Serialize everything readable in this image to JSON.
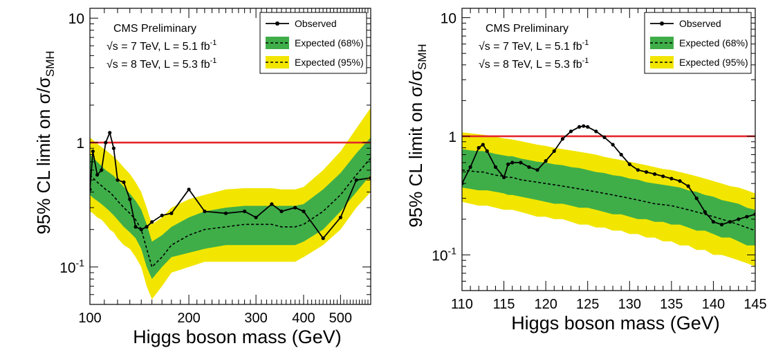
{
  "colors": {
    "band95": "#f2e600",
    "band68": "#3fae49",
    "observed": "#000000",
    "expected_line": "#000000",
    "sm_line": "#e4262a"
  },
  "chart_data": [
    {
      "type": "line",
      "xscale": "log",
      "yscale": "log",
      "xlim": [
        110,
        600
      ],
      "ylim": [
        0.05,
        12
      ],
      "xticks": [
        100,
        200,
        300,
        400,
        500
      ],
      "xtick_labels": [
        "100",
        "200",
        "300",
        "400",
        "500"
      ],
      "yticks": [
        0.1,
        1,
        10
      ],
      "ytick_labels": [
        "10-1",
        "1",
        "10"
      ],
      "xlabel": "Higgs boson mass (GeV)",
      "ylabel": "95% CL limit on σ/σSMH",
      "texts": [
        "CMS Preliminary",
        "√s = 7 TeV, L = 5.1 fb-1",
        "√s = 8 TeV, L = 5.3 fb-1"
      ],
      "legend": [
        "Observed",
        "Expected (68%)",
        "Expected (95%)"
      ],
      "sm_reference": 1,
      "x": [
        110,
        112,
        115,
        118,
        121,
        124,
        127,
        130,
        135,
        140,
        145,
        150,
        155,
        160,
        170,
        180,
        200,
        220,
        250,
        280,
        300,
        330,
        350,
        380,
        400,
        450,
        500,
        550,
        600
      ],
      "observed": [
        0.42,
        0.85,
        0.55,
        0.6,
        1.0,
        1.2,
        0.9,
        0.5,
        0.48,
        0.35,
        0.21,
        0.2,
        0.21,
        0.23,
        0.26,
        0.27,
        0.42,
        0.28,
        0.27,
        0.28,
        0.25,
        0.32,
        0.28,
        0.3,
        0.28,
        0.17,
        0.25,
        0.5,
        0.52
      ],
      "expected": [
        0.55,
        0.52,
        0.48,
        0.45,
        0.42,
        0.4,
        0.37,
        0.34,
        0.3,
        0.27,
        0.24,
        0.2,
        0.14,
        0.1,
        0.12,
        0.15,
        0.18,
        0.2,
        0.21,
        0.22,
        0.22,
        0.22,
        0.21,
        0.21,
        0.22,
        0.28,
        0.38,
        0.55,
        0.75
      ],
      "band68": {
        "low": [
          0.38,
          0.36,
          0.34,
          0.32,
          0.3,
          0.28,
          0.26,
          0.24,
          0.21,
          0.19,
          0.17,
          0.14,
          0.1,
          0.08,
          0.1,
          0.12,
          0.13,
          0.14,
          0.15,
          0.15,
          0.15,
          0.15,
          0.15,
          0.15,
          0.16,
          0.2,
          0.28,
          0.4,
          0.55
        ],
        "high": [
          0.8,
          0.76,
          0.7,
          0.65,
          0.6,
          0.57,
          0.54,
          0.5,
          0.44,
          0.39,
          0.34,
          0.29,
          0.22,
          0.16,
          0.18,
          0.21,
          0.25,
          0.28,
          0.3,
          0.31,
          0.31,
          0.31,
          0.31,
          0.31,
          0.32,
          0.42,
          0.57,
          0.82,
          1.1
        ]
      },
      "band95": {
        "low": [
          0.28,
          0.27,
          0.25,
          0.24,
          0.22,
          0.2,
          0.19,
          0.17,
          0.15,
          0.14,
          0.12,
          0.1,
          0.07,
          0.055,
          0.07,
          0.09,
          0.1,
          0.11,
          0.11,
          0.11,
          0.11,
          0.11,
          0.11,
          0.11,
          0.12,
          0.15,
          0.2,
          0.3,
          0.4
        ],
        "high": [
          1.1,
          1.05,
          0.98,
          0.92,
          0.87,
          0.82,
          0.77,
          0.72,
          0.63,
          0.56,
          0.48,
          0.4,
          0.3,
          0.22,
          0.25,
          0.3,
          0.35,
          0.38,
          0.42,
          0.43,
          0.43,
          0.43,
          0.42,
          0.42,
          0.44,
          0.6,
          0.85,
          1.3,
          1.9
        ]
      }
    },
    {
      "type": "line",
      "xscale": "linear",
      "yscale": "log",
      "xlim": [
        110,
        145
      ],
      "ylim": [
        0.05,
        12
      ],
      "xticks": [
        110,
        115,
        120,
        125,
        130,
        135,
        140,
        145
      ],
      "xtick_labels": [
        "110",
        "115",
        "120",
        "125",
        "130",
        "135",
        "140",
        "145"
      ],
      "yticks": [
        0.1,
        1,
        10
      ],
      "ytick_labels": [
        "10-1",
        "1",
        "10"
      ],
      "xlabel": "Higgs boson mass (GeV)",
      "ylabel": "95% CL limit on σ/σSMH",
      "texts": [
        "CMS Preliminary",
        "√s = 7 TeV, L = 5.1 fb-1",
        "√s = 8 TeV, L = 5.3 fb-1"
      ],
      "legend": [
        "Observed",
        "Expected (68%)",
        "Expected (95%)"
      ],
      "sm_reference": 1,
      "x": [
        110,
        111,
        112,
        112.5,
        113,
        114,
        115,
        115.5,
        116,
        117,
        118,
        119,
        120,
        121,
        122,
        123,
        124,
        124.5,
        125,
        126,
        127,
        128,
        129,
        130,
        131,
        132,
        133,
        134,
        135,
        136,
        137,
        138,
        139,
        140,
        141,
        142,
        143,
        144,
        145
      ],
      "observed": [
        0.4,
        0.55,
        0.8,
        0.85,
        0.75,
        0.55,
        0.45,
        0.58,
        0.6,
        0.6,
        0.55,
        0.52,
        0.62,
        0.75,
        0.95,
        1.1,
        1.2,
        1.22,
        1.2,
        1.1,
        0.98,
        0.85,
        0.7,
        0.58,
        0.52,
        0.5,
        0.48,
        0.46,
        0.44,
        0.42,
        0.38,
        0.3,
        0.23,
        0.19,
        0.18,
        0.19,
        0.2,
        0.21,
        0.22
      ],
      "expected": [
        0.52,
        0.51,
        0.5,
        0.5,
        0.49,
        0.47,
        0.46,
        0.45,
        0.45,
        0.43,
        0.42,
        0.41,
        0.4,
        0.39,
        0.38,
        0.37,
        0.36,
        0.355,
        0.35,
        0.34,
        0.33,
        0.32,
        0.31,
        0.3,
        0.29,
        0.28,
        0.27,
        0.265,
        0.26,
        0.25,
        0.24,
        0.23,
        0.22,
        0.21,
        0.2,
        0.19,
        0.18,
        0.17,
        0.16
      ],
      "band68": {
        "low": [
          0.37,
          0.36,
          0.35,
          0.35,
          0.35,
          0.34,
          0.33,
          0.32,
          0.32,
          0.31,
          0.3,
          0.29,
          0.28,
          0.27,
          0.27,
          0.26,
          0.25,
          0.25,
          0.25,
          0.24,
          0.23,
          0.22,
          0.22,
          0.21,
          0.2,
          0.2,
          0.19,
          0.19,
          0.18,
          0.18,
          0.17,
          0.16,
          0.16,
          0.15,
          0.14,
          0.14,
          0.13,
          0.12,
          0.12
        ],
        "high": [
          0.78,
          0.76,
          0.75,
          0.75,
          0.74,
          0.71,
          0.69,
          0.68,
          0.68,
          0.65,
          0.63,
          0.61,
          0.6,
          0.58,
          0.57,
          0.55,
          0.54,
          0.53,
          0.52,
          0.5,
          0.49,
          0.47,
          0.46,
          0.44,
          0.43,
          0.41,
          0.4,
          0.39,
          0.38,
          0.37,
          0.35,
          0.34,
          0.32,
          0.31,
          0.29,
          0.28,
          0.27,
          0.25,
          0.24
        ]
      },
      "band95": {
        "low": [
          0.28,
          0.27,
          0.26,
          0.26,
          0.26,
          0.25,
          0.24,
          0.24,
          0.24,
          0.23,
          0.22,
          0.21,
          0.21,
          0.2,
          0.2,
          0.19,
          0.18,
          0.18,
          0.18,
          0.17,
          0.17,
          0.16,
          0.16,
          0.15,
          0.15,
          0.14,
          0.14,
          0.13,
          0.13,
          0.12,
          0.12,
          0.11,
          0.11,
          0.1,
          0.1,
          0.095,
          0.09,
          0.085,
          0.08
        ],
        "high": [
          1.08,
          1.06,
          1.04,
          1.03,
          1.02,
          0.99,
          0.96,
          0.95,
          0.94,
          0.91,
          0.88,
          0.85,
          0.83,
          0.8,
          0.78,
          0.76,
          0.74,
          0.73,
          0.72,
          0.7,
          0.67,
          0.65,
          0.63,
          0.61,
          0.59,
          0.57,
          0.55,
          0.53,
          0.52,
          0.5,
          0.48,
          0.46,
          0.44,
          0.42,
          0.4,
          0.38,
          0.37,
          0.35,
          0.33
        ]
      }
    }
  ]
}
